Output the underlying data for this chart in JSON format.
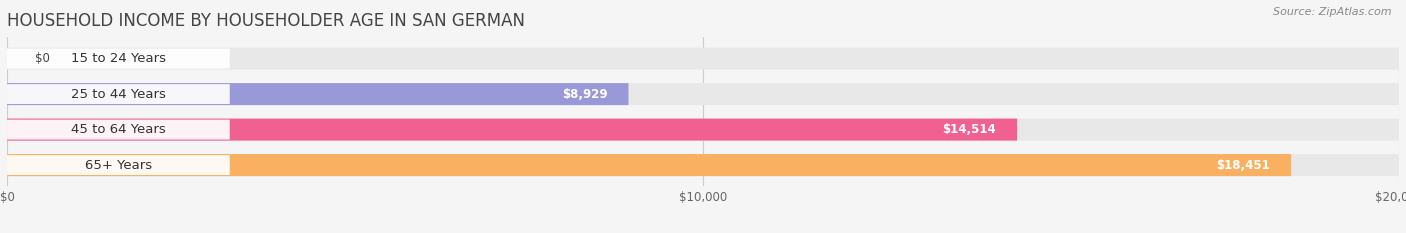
{
  "title": "HOUSEHOLD INCOME BY HOUSEHOLDER AGE IN SAN GERMAN",
  "source": "Source: ZipAtlas.com",
  "categories": [
    "15 to 24 Years",
    "25 to 44 Years",
    "45 to 64 Years",
    "65+ Years"
  ],
  "values": [
    0,
    8929,
    14514,
    18451
  ],
  "labels": [
    "$0",
    "$8,929",
    "$14,514",
    "$18,451"
  ],
  "bar_colors": [
    "#6ecfcc",
    "#9999d9",
    "#f06090",
    "#f9b060"
  ],
  "xlim": [
    0,
    20000
  ],
  "xticks": [
    0,
    10000,
    20000
  ],
  "xticklabels": [
    "$0",
    "$10,000",
    "$20,000"
  ],
  "background_color": "#f5f5f5",
  "bar_bg_color": "#e8e8e8",
  "title_fontsize": 12,
  "source_fontsize": 8,
  "label_fontsize": 8.5,
  "cat_fontsize": 9.5,
  "bar_height": 0.62
}
